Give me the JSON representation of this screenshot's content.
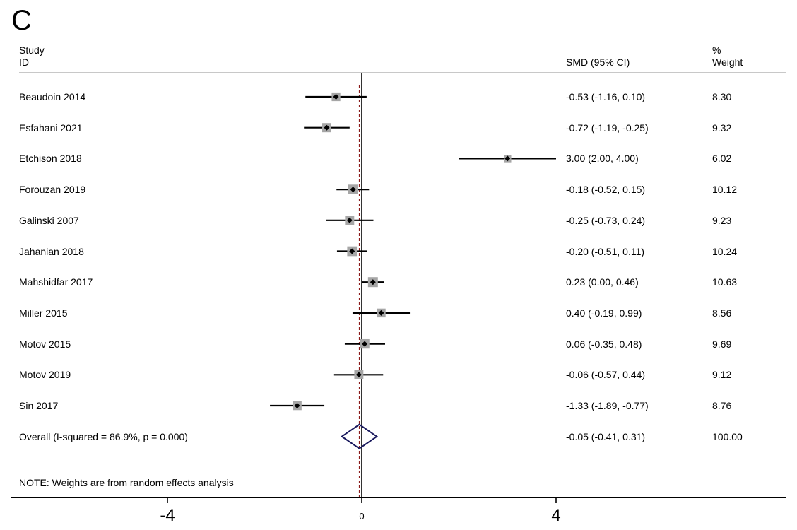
{
  "panel_letter": "C",
  "header": {
    "study_line1": "Study",
    "study_line2": "ID",
    "smd": "SMD (95% CI)",
    "weight_line1": "%",
    "weight_line2": "Weight"
  },
  "note": "NOTE: Weights are from random effects analysis",
  "colors": {
    "marker_box": "#a6a6a6",
    "diamond": "#1a1a5e",
    "null_line": "#000000",
    "overall_line": "#8b1a1a"
  },
  "chart_data": {
    "type": "forest",
    "xlim": [
      -7.32,
      8.63
    ],
    "xticks": [
      -4,
      0,
      4
    ],
    "xtick_labels": [
      "-4",
      "0",
      "4"
    ],
    "null_value": 0,
    "studies": [
      {
        "label": "Beaudoin 2014",
        "smd": -0.53,
        "lo": -1.16,
        "hi": 0.1,
        "ci_text": "-0.53 (-1.16, 0.10)",
        "weight": 8.3,
        "weight_text": "8.30"
      },
      {
        "label": "Esfahani 2021",
        "smd": -0.72,
        "lo": -1.19,
        "hi": -0.25,
        "ci_text": "-0.72 (-1.19, -0.25)",
        "weight": 9.32,
        "weight_text": "9.32"
      },
      {
        "label": "Etchison 2018",
        "smd": 3.0,
        "lo": 2.0,
        "hi": 4.0,
        "ci_text": "3.00 (2.00, 4.00)",
        "weight": 6.02,
        "weight_text": "6.02"
      },
      {
        "label": "Forouzan 2019",
        "smd": -0.18,
        "lo": -0.52,
        "hi": 0.15,
        "ci_text": "-0.18 (-0.52, 0.15)",
        "weight": 10.12,
        "weight_text": "10.12"
      },
      {
        "label": "Galinski 2007",
        "smd": -0.25,
        "lo": -0.73,
        "hi": 0.24,
        "ci_text": "-0.25 (-0.73, 0.24)",
        "weight": 9.23,
        "weight_text": "9.23"
      },
      {
        "label": "Jahanian 2018",
        "smd": -0.2,
        "lo": -0.51,
        "hi": 0.11,
        "ci_text": "-0.20 (-0.51, 0.11)",
        "weight": 10.24,
        "weight_text": "10.24"
      },
      {
        "label": "Mahshidfar 2017",
        "smd": 0.23,
        "lo": 0.0,
        "hi": 0.46,
        "ci_text": "0.23 (0.00, 0.46)",
        "weight": 10.63,
        "weight_text": "10.63"
      },
      {
        "label": "Miller 2015",
        "smd": 0.4,
        "lo": -0.19,
        "hi": 0.99,
        "ci_text": "0.40 (-0.19, 0.99)",
        "weight": 8.56,
        "weight_text": "8.56"
      },
      {
        "label": "Motov 2015",
        "smd": 0.06,
        "lo": -0.35,
        "hi": 0.48,
        "ci_text": "0.06 (-0.35, 0.48)",
        "weight": 9.69,
        "weight_text": "9.69"
      },
      {
        "label": "Motov 2019",
        "smd": -0.06,
        "lo": -0.57,
        "hi": 0.44,
        "ci_text": "-0.06 (-0.57, 0.44)",
        "weight": 9.12,
        "weight_text": "9.12"
      },
      {
        "label": "Sin 2017",
        "smd": -1.33,
        "lo": -1.89,
        "hi": -0.77,
        "ci_text": "-1.33 (-1.89, -0.77)",
        "weight": 8.76,
        "weight_text": "8.76"
      }
    ],
    "overall": {
      "label": "Overall  (I-squared = 86.9%, p = 0.000)",
      "smd": -0.05,
      "lo": -0.41,
      "hi": 0.31,
      "ci_text": "-0.05 (-0.41, 0.31)",
      "weight": 100.0,
      "weight_text": "100.00"
    }
  }
}
